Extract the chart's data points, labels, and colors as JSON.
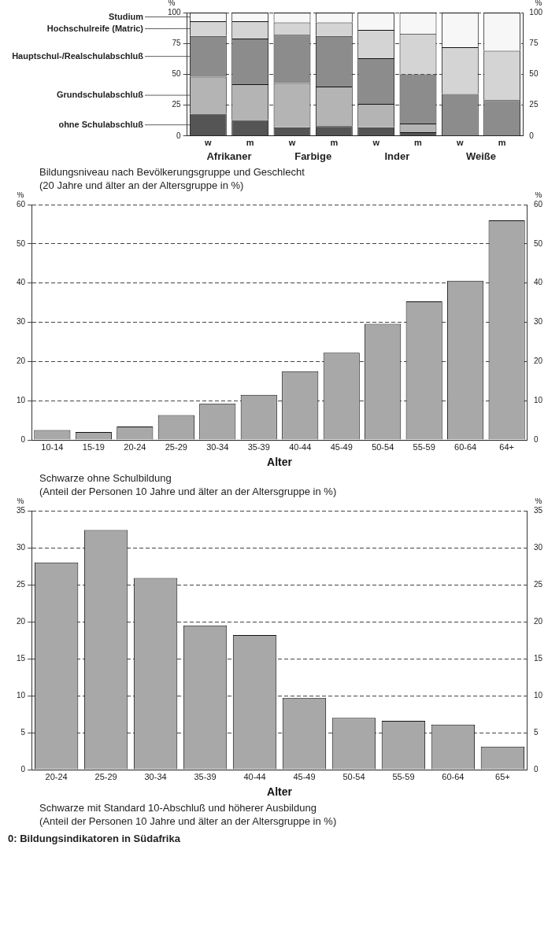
{
  "chart_data": [
    {
      "type": "bar",
      "stacked": true,
      "title": "Bildungsniveau nach Bevölkerungsgruppe und Geschlecht",
      "subtitle": "(20 Jahre und älter an der Altersgruppe in %)",
      "ylabel": "%",
      "y2label": "%",
      "categories": [
        "w",
        "m",
        "w",
        "m",
        "w",
        "m",
        "w",
        "m"
      ],
      "series": [
        {
          "name": "ohne Schulabschluß",
          "color": "#555555",
          "values": [
            18,
            13,
            7,
            8,
            7,
            3,
            0,
            0
          ]
        },
        {
          "name": "Grundschulabschluß",
          "color": "#b4b4b4",
          "values": [
            30,
            29,
            36,
            32,
            19,
            7,
            0,
            0
          ]
        },
        {
          "name": "Hauptschul-/Realschulabschluß",
          "color": "#8c8c8c",
          "values": [
            33,
            37,
            39,
            41,
            37,
            40,
            34,
            29
          ]
        },
        {
          "name": "Hochschulreife (Matric)",
          "color": "#d4d4d4",
          "values": [
            12,
            14,
            10,
            11,
            23,
            33,
            38,
            40
          ]
        },
        {
          "name": "Studium",
          "color": "#f7f7f7",
          "values": [
            7,
            7,
            8,
            8,
            14,
            17,
            28,
            31
          ]
        }
      ],
      "ylim": [
        0,
        100
      ],
      "yticks": [
        0,
        25,
        50,
        75,
        100
      ],
      "y2lim": [
        0,
        100
      ],
      "y2ticks": [
        0,
        25,
        50,
        75,
        100
      ],
      "grid": "y",
      "annotations": [
        "Afrikaner",
        "Farbige",
        "Inder",
        "Weiße"
      ]
    },
    {
      "type": "bar",
      "title": "Schwarze ohne Schulbildung",
      "subtitle": "(Anteil der Personen 10 Jahre und älter an der Altersgruppe in %)",
      "xlabel": "Alter",
      "ylabel": "%",
      "y2label": "%",
      "categories": [
        "10-14",
        "15-19",
        "20-24",
        "25-29",
        "30-34",
        "35-39",
        "40-44",
        "45-49",
        "50-54",
        "55-59",
        "60-64",
        "64+"
      ],
      "values": [
        2.5,
        2,
        3.4,
        6.3,
        9.3,
        11.5,
        17.5,
        22.2,
        29.6,
        35.3,
        40.6,
        56
      ],
      "color": "#a8a8a8",
      "ylim": [
        0,
        60
      ],
      "yticks": [
        0,
        10,
        20,
        30,
        40,
        50,
        60
      ],
      "y2lim": [
        0,
        60
      ],
      "y2ticks": [
        0,
        10,
        20,
        30,
        40,
        50,
        60
      ],
      "grid": "y"
    },
    {
      "type": "bar",
      "title": "Schwarze mit Standard 10-Abschluß und höherer Ausbildung",
      "subtitle": "(Anteil der Personen 10 Jahre und älter an der Altersgruppe in %)",
      "xlabel": "Alter",
      "ylabel": "%",
      "y2label": "%",
      "categories": [
        "20-24",
        "25-29",
        "30-34",
        "35-39",
        "40-44",
        "45-49",
        "50-54",
        "55-59",
        "60-64",
        "65+"
      ],
      "values": [
        28,
        32.4,
        25.9,
        19.5,
        18.2,
        9.7,
        7,
        6.6,
        6.1,
        3.1
      ],
      "color": "#a8a8a8",
      "ylim": [
        0,
        35
      ],
      "yticks": [
        0,
        5,
        10,
        15,
        20,
        25,
        30,
        35
      ],
      "y2lim": [
        0,
        35
      ],
      "y2ticks": [
        0,
        5,
        10,
        15,
        20,
        25,
        30,
        35
      ],
      "grid": "y",
      "annotations": [
        "0: Bildungsindikatoren in Südafrika"
      ]
    }
  ]
}
